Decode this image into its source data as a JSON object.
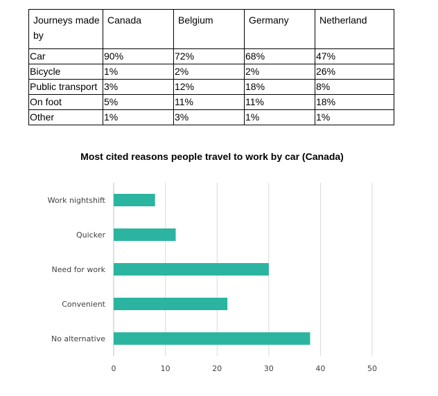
{
  "table": {
    "header": [
      "Journeys made by",
      "Canada",
      "Belgium",
      "Germany",
      "Netherland"
    ],
    "rows": [
      [
        "Car",
        "90%",
        "72%",
        "68%",
        "47%"
      ],
      [
        "Bicycle",
        "1%",
        "2%",
        "2%",
        "26%"
      ],
      [
        "Public transport",
        "3%",
        "12%",
        "18%",
        "8%"
      ],
      [
        "On foot",
        "5%",
        "11%",
        "11%",
        "18%"
      ],
      [
        "Other",
        "1%",
        "3%",
        "1%",
        "1%"
      ]
    ]
  },
  "chart_data": {
    "type": "bar",
    "orientation": "horizontal",
    "title": "Most cited reasons people travel to work by car (Canada)",
    "categories": [
      "Work nightshift",
      "Quicker",
      "Need for work",
      "Convenient",
      "No alternative"
    ],
    "values": [
      8,
      12,
      30,
      22,
      38
    ],
    "xlim": [
      0,
      50
    ],
    "xticks": [
      0,
      10,
      20,
      30,
      40,
      50
    ],
    "grid": "vertical",
    "bar_color": "#2bb5a0"
  }
}
